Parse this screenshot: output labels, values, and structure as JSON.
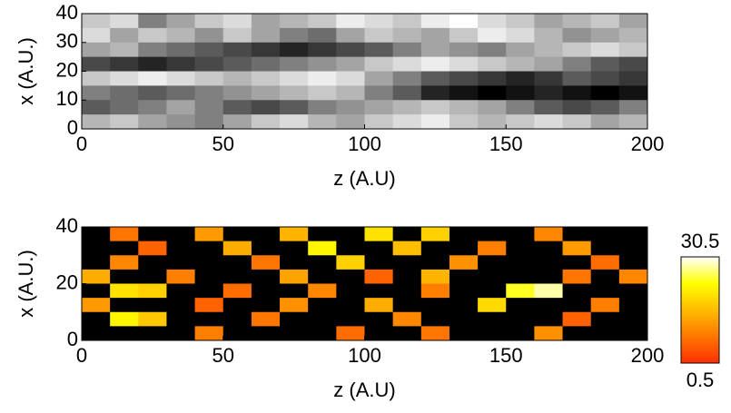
{
  "chart_data": [
    {
      "type": "heatmap",
      "xlabel": "z (A.U)",
      "ylabel": "x (A.U.)",
      "xlim": [
        0,
        200
      ],
      "ylim": [
        0,
        40
      ],
      "xticks": [
        0,
        50,
        100,
        150,
        200
      ],
      "yticks": [
        0,
        10,
        20,
        30,
        40
      ],
      "colormap": "gray",
      "z": [
        [
          0.8,
          0.85,
          0.6,
          0.7,
          0.8,
          0.85,
          0.7,
          0.75,
          0.8,
          0.9,
          0.85,
          0.8,
          0.9,
          0.95,
          0.85,
          0.8,
          0.7,
          0.75,
          0.8,
          0.7
        ],
        [
          0.85,
          0.7,
          0.8,
          0.75,
          0.65,
          0.8,
          0.7,
          0.6,
          0.55,
          0.7,
          0.8,
          0.75,
          0.7,
          0.8,
          0.9,
          0.85,
          0.75,
          0.65,
          0.7,
          0.75
        ],
        [
          0.7,
          0.75,
          0.6,
          0.55,
          0.5,
          0.45,
          0.4,
          0.35,
          0.4,
          0.45,
          0.5,
          0.6,
          0.7,
          0.65,
          0.6,
          0.7,
          0.75,
          0.8,
          0.85,
          0.8
        ],
        [
          0.45,
          0.4,
          0.35,
          0.4,
          0.45,
          0.5,
          0.55,
          0.6,
          0.65,
          0.7,
          0.8,
          0.85,
          0.9,
          0.85,
          0.8,
          0.75,
          0.7,
          0.6,
          0.5,
          0.45
        ],
        [
          0.8,
          0.85,
          0.9,
          0.85,
          0.8,
          0.75,
          0.8,
          0.85,
          0.9,
          0.85,
          0.7,
          0.6,
          0.5,
          0.45,
          0.4,
          0.35,
          0.4,
          0.5,
          0.45,
          0.4
        ],
        [
          0.6,
          0.55,
          0.5,
          0.55,
          0.6,
          0.65,
          0.7,
          0.75,
          0.8,
          0.75,
          0.6,
          0.5,
          0.35,
          0.3,
          0.25,
          0.3,
          0.35,
          0.3,
          0.25,
          0.3
        ],
        [
          0.5,
          0.55,
          0.6,
          0.7,
          0.6,
          0.5,
          0.45,
          0.5,
          0.6,
          0.65,
          0.7,
          0.75,
          0.8,
          0.75,
          0.7,
          0.6,
          0.5,
          0.45,
          0.5,
          0.6
        ],
        [
          0.75,
          0.8,
          0.7,
          0.65,
          0.6,
          0.7,
          0.8,
          0.85,
          0.75,
          0.7,
          0.8,
          0.85,
          0.9,
          0.8,
          0.75,
          0.8,
          0.85,
          0.8,
          0.7,
          0.75
        ]
      ]
    },
    {
      "type": "heatmap",
      "xlabel": "z (A.U)",
      "ylabel": "x (A.U.)",
      "xlim": [
        0,
        200
      ],
      "ylim": [
        0,
        40
      ],
      "xticks": [
        0,
        50,
        100,
        150,
        200
      ],
      "yticks": [
        0,
        20,
        40
      ],
      "colormap": "hot",
      "zlim": [
        0.5,
        30.5
      ],
      "cticks": [
        0.5,
        30.5
      ],
      "z": [
        [
          0,
          8,
          0,
          0,
          12,
          0,
          0,
          15,
          0,
          0,
          20,
          0,
          18,
          0,
          0,
          0,
          10,
          0,
          0,
          0
        ],
        [
          0,
          0,
          6,
          0,
          0,
          14,
          0,
          0,
          22,
          0,
          0,
          16,
          0,
          0,
          9,
          0,
          0,
          12,
          0,
          0
        ],
        [
          0,
          10,
          0,
          0,
          0,
          0,
          8,
          0,
          0,
          18,
          0,
          0,
          0,
          11,
          0,
          0,
          0,
          0,
          7,
          0
        ],
        [
          14,
          0,
          0,
          9,
          0,
          0,
          0,
          13,
          0,
          0,
          6,
          0,
          15,
          0,
          0,
          0,
          0,
          8,
          0,
          10
        ],
        [
          0,
          20,
          18,
          0,
          0,
          7,
          0,
          0,
          10,
          0,
          0,
          0,
          9,
          0,
          0,
          24,
          28,
          0,
          0,
          0
        ],
        [
          12,
          0,
          0,
          0,
          6,
          0,
          0,
          11,
          0,
          0,
          14,
          0,
          0,
          0,
          19,
          0,
          0,
          0,
          9,
          0
        ],
        [
          0,
          22,
          17,
          0,
          0,
          0,
          8,
          0,
          0,
          0,
          0,
          10,
          0,
          0,
          0,
          0,
          0,
          6,
          0,
          0
        ],
        [
          0,
          0,
          0,
          0,
          9,
          0,
          0,
          0,
          0,
          7,
          0,
          0,
          8,
          0,
          0,
          0,
          11,
          0,
          0,
          0
        ]
      ]
    }
  ]
}
